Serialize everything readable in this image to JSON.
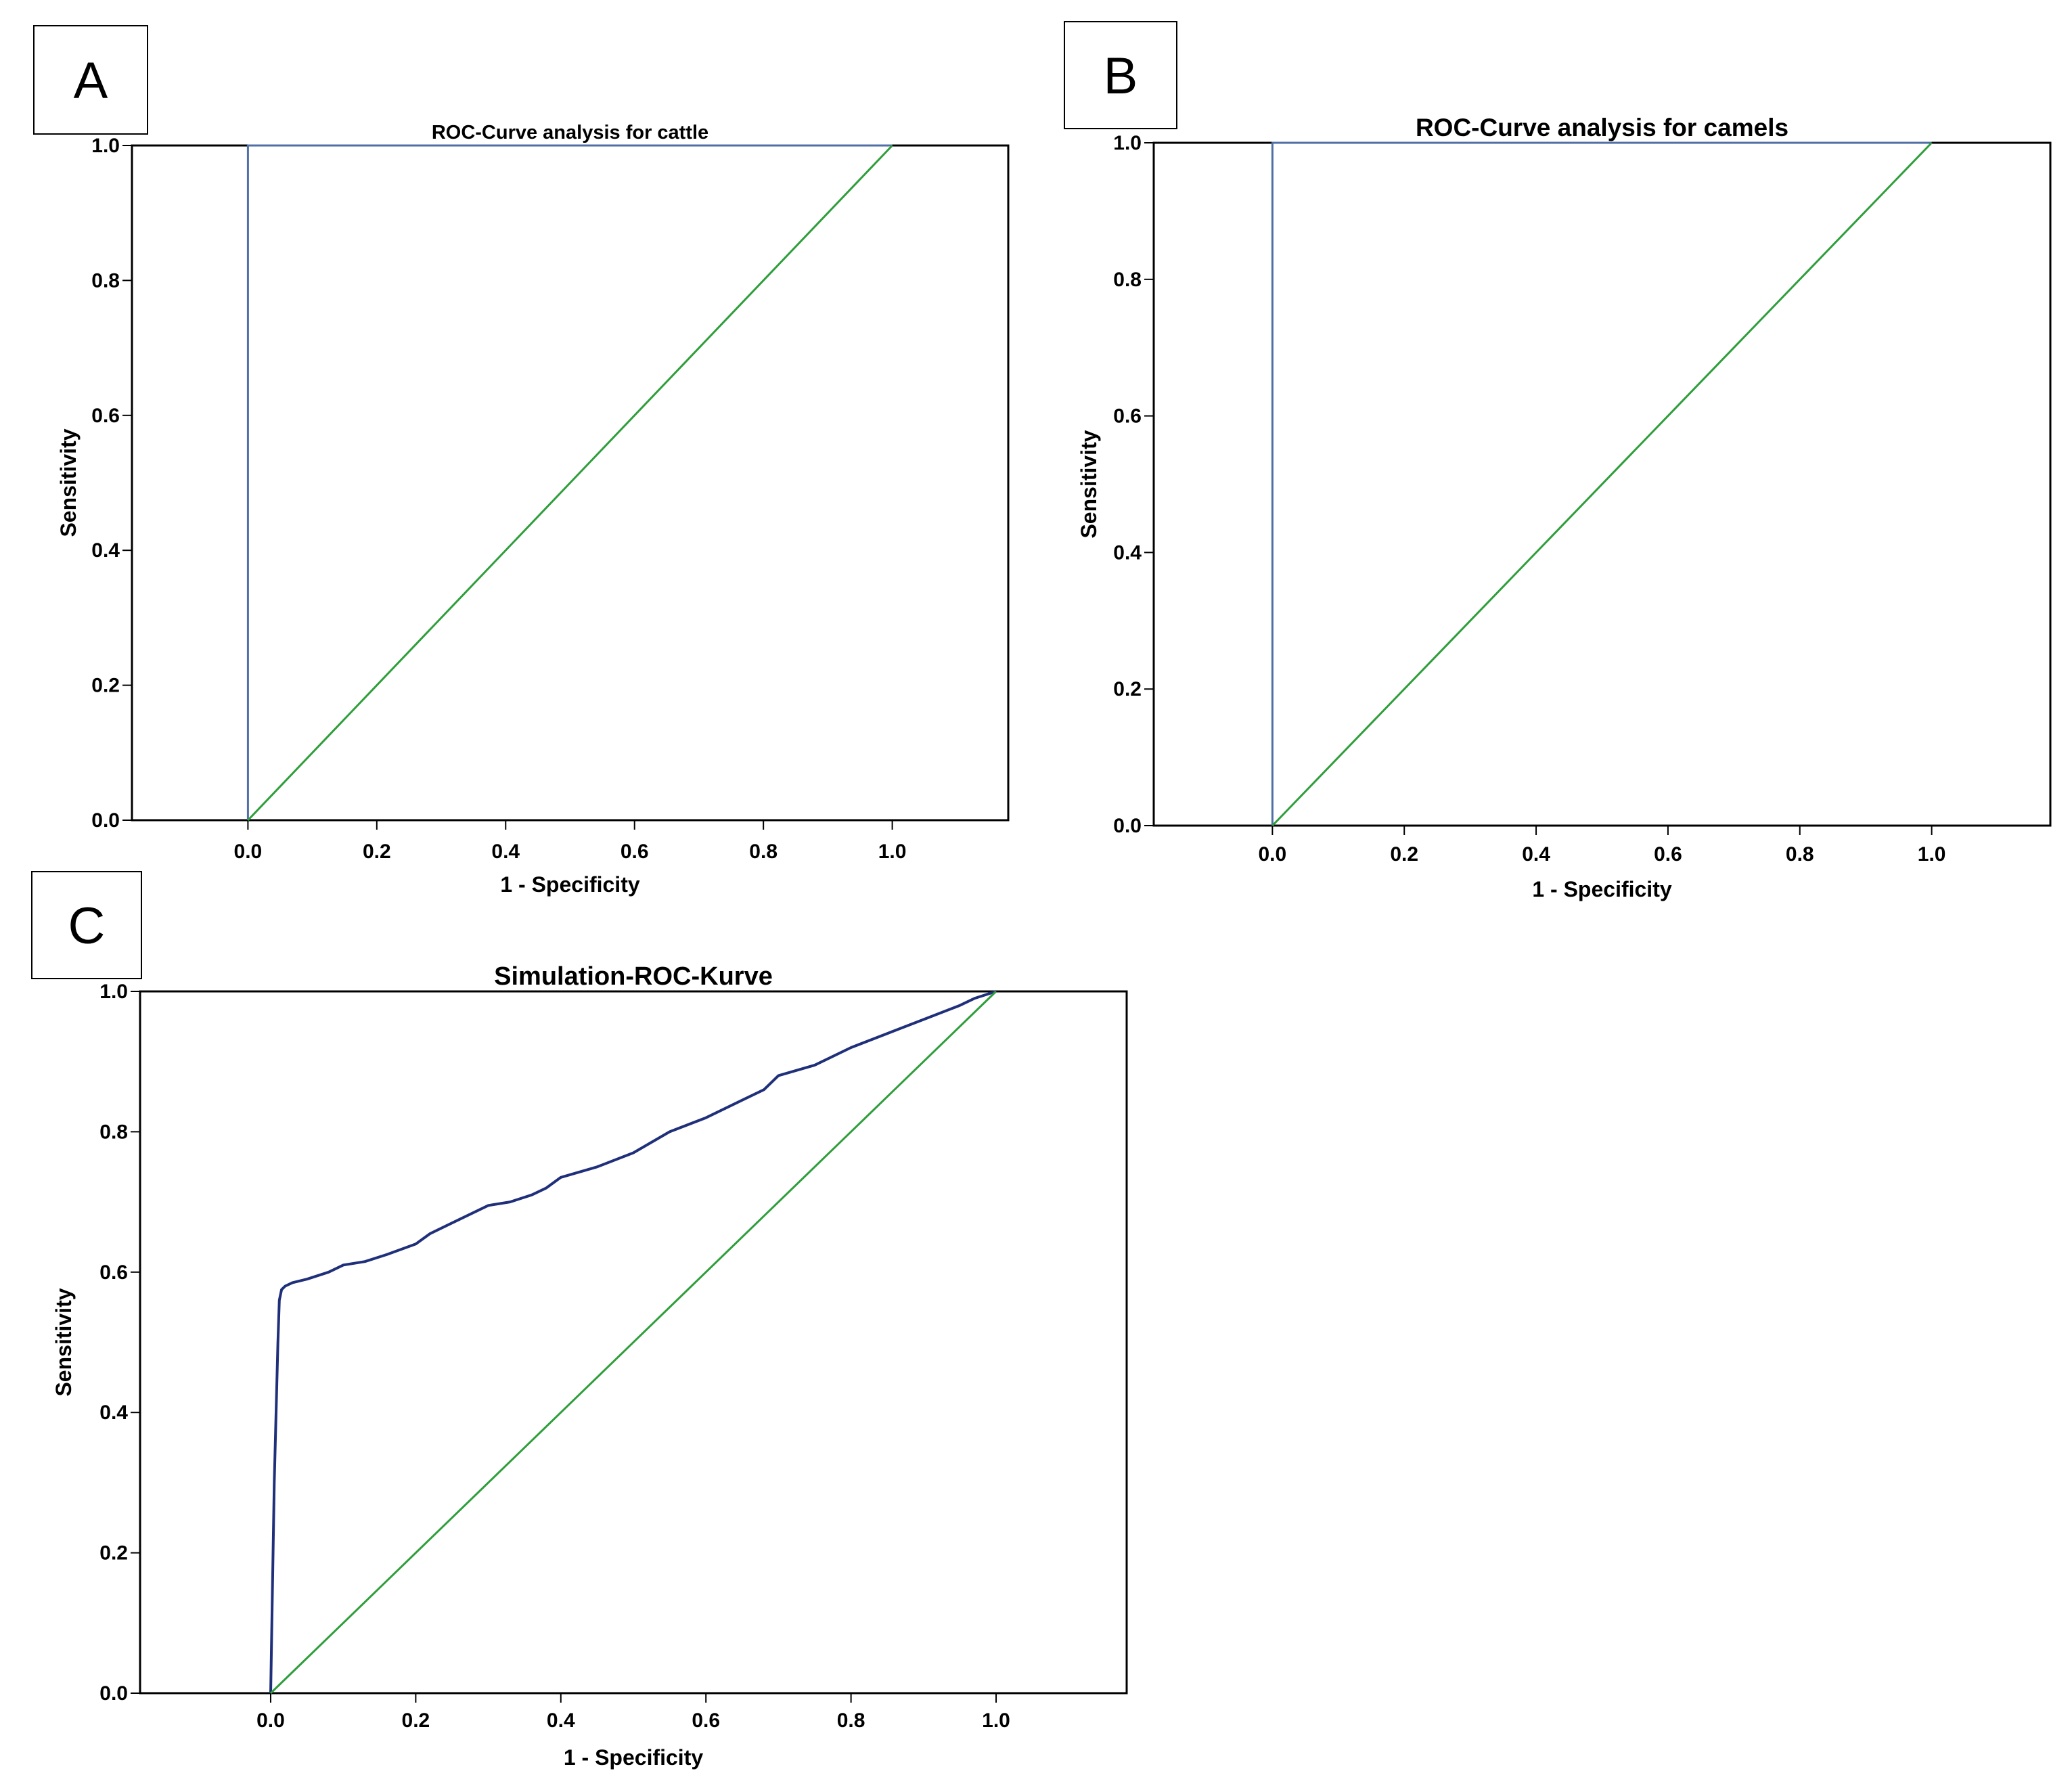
{
  "figure": {
    "panels": [
      "A",
      "B",
      "C"
    ]
  },
  "chart_data": [
    {
      "panel": "A",
      "type": "line",
      "title": "ROC-Curve analysis for cattle",
      "xlabel": "1 - Specificity",
      "ylabel": "Sensitivity",
      "xlim": [
        -0.18,
        1.18
      ],
      "ylim": [
        0.0,
        1.0
      ],
      "xticks": [
        "0.0",
        "0.2",
        "0.4",
        "0.6",
        "0.8",
        "1.0"
      ],
      "yticks": [
        "0.0",
        "0.2",
        "0.4",
        "0.6",
        "0.8",
        "1.0"
      ],
      "series": [
        {
          "name": "ROC curve",
          "color": "#4f6fa6",
          "x": [
            0.0,
            0.0,
            1.0
          ],
          "y": [
            0.0,
            1.0,
            1.0
          ]
        },
        {
          "name": "Reference line",
          "color": "#2e9e3a",
          "x": [
            0.0,
            1.0
          ],
          "y": [
            0.0,
            1.0
          ]
        }
      ]
    },
    {
      "panel": "B",
      "type": "line",
      "title": "ROC-Curve analysis for camels",
      "xlabel": "1 - Specificity",
      "ylabel": "Sensitivity",
      "xlim": [
        -0.18,
        1.18
      ],
      "ylim": [
        0.0,
        1.0
      ],
      "xticks": [
        "0.0",
        "0.2",
        "0.4",
        "0.6",
        "0.8",
        "1.0"
      ],
      "yticks": [
        "0.0",
        "0.2",
        "0.4",
        "0.6",
        "0.8",
        "1.0"
      ],
      "series": [
        {
          "name": "ROC curve",
          "color": "#4f6fa6",
          "x": [
            0.0,
            0.0,
            1.0
          ],
          "y": [
            0.0,
            1.0,
            1.0
          ]
        },
        {
          "name": "Reference line",
          "color": "#2e9e3a",
          "x": [
            0.0,
            1.0
          ],
          "y": [
            0.0,
            1.0
          ]
        }
      ]
    },
    {
      "panel": "C",
      "type": "line",
      "title": "Simulation-ROC-Kurve",
      "xlabel": "1 - Specificity",
      "ylabel": "Sensitivity",
      "xlim": [
        -0.18,
        1.18
      ],
      "ylim": [
        0.0,
        1.0
      ],
      "xticks": [
        "0.0",
        "0.2",
        "0.4",
        "0.6",
        "0.8",
        "1.0"
      ],
      "yticks": [
        "0.0",
        "0.2",
        "0.4",
        "0.6",
        "0.8",
        "1.0"
      ],
      "series": [
        {
          "name": "ROC curve",
          "color": "#1f2f7a",
          "x": [
            0.0,
            0.005,
            0.01,
            0.012,
            0.015,
            0.02,
            0.03,
            0.05,
            0.08,
            0.1,
            0.13,
            0.16,
            0.2,
            0.22,
            0.25,
            0.28,
            0.3,
            0.33,
            0.36,
            0.38,
            0.4,
            0.45,
            0.5,
            0.55,
            0.6,
            0.65,
            0.68,
            0.7,
            0.75,
            0.8,
            0.85,
            0.9,
            0.95,
            0.97,
            1.0
          ],
          "y": [
            0.0,
            0.3,
            0.5,
            0.56,
            0.575,
            0.58,
            0.585,
            0.59,
            0.6,
            0.61,
            0.615,
            0.625,
            0.64,
            0.655,
            0.67,
            0.685,
            0.695,
            0.7,
            0.71,
            0.72,
            0.735,
            0.75,
            0.77,
            0.8,
            0.82,
            0.845,
            0.86,
            0.88,
            0.895,
            0.92,
            0.94,
            0.96,
            0.98,
            0.99,
            1.0
          ]
        },
        {
          "name": "Reference line",
          "color": "#2e9e3a",
          "x": [
            0.0,
            1.0
          ],
          "y": [
            0.0,
            1.0
          ]
        }
      ]
    }
  ]
}
